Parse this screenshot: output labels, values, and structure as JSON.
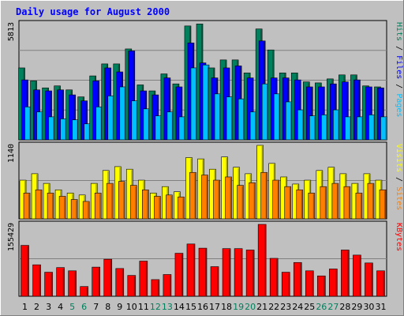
{
  "chart_data": {
    "type": "bar",
    "title": "Daily usage for August 2000",
    "categories": [
      "1",
      "2",
      "3",
      "4",
      "5",
      "6",
      "7",
      "8",
      "9",
      "10",
      "11",
      "12",
      "13",
      "14",
      "15",
      "16",
      "17",
      "18",
      "19",
      "20",
      "21",
      "22",
      "23",
      "24",
      "25",
      "26",
      "27",
      "28",
      "29",
      "30",
      "31"
    ],
    "weekend_days": [
      "5",
      "6",
      "12",
      "13",
      "19",
      "20",
      "26",
      "27"
    ],
    "colors": {
      "background": "#c0c0c0",
      "title": "#0000ff",
      "hits": "#00805c",
      "files": "#0000ff",
      "pages": "#00c0ff",
      "visits": "#ffff00",
      "sites": "#ff8000",
      "kbytes": "#ff0000",
      "weekend_label": "#00805c",
      "weekday_label": "#000000"
    },
    "panels": [
      {
        "id": "hits-files-pages",
        "max_label": "5813",
        "ylim": [
          0,
          5813
        ],
        "legend": [
          {
            "text": "Hits",
            "color": "#00805c"
          },
          {
            "text": " / ",
            "color": "#000000"
          },
          {
            "text": "Files",
            "color": "#0000ff"
          },
          {
            "text": " / ",
            "color": "#000000"
          },
          {
            "text": "Pages",
            "color": "#00c0ff"
          }
        ],
        "series": [
          {
            "name": "Hits",
            "values": [
              3600,
              2950,
              2600,
              2700,
              2500,
              2150,
              3200,
              3800,
              3800,
              4550,
              2750,
              2450,
              3300,
              2800,
              5700,
              5800,
              3600,
              4000,
              4000,
              3350,
              5550,
              4500,
              3350,
              3350,
              2900,
              2850,
              3050,
              3250,
              3250,
              2700,
              2650
            ]
          },
          {
            "name": "Files",
            "values": [
              3000,
              2500,
              2450,
              2500,
              2250,
              1950,
              2950,
              3600,
              3400,
              4450,
              2450,
              2250,
              3100,
              2650,
              4850,
              3850,
              3100,
              3600,
              3700,
              3100,
              4950,
              3100,
              3100,
              3000,
              2650,
              2650,
              2800,
              2900,
              3000,
              2650,
              2600
            ]
          },
          {
            "name": "Pages",
            "values": [
              1650,
              1400,
              1150,
              1050,
              1000,
              800,
              1650,
              2200,
              2650,
              1950,
              1550,
              1200,
              1400,
              1150,
              3600,
              3750,
              2300,
              2150,
              2050,
              1400,
              2800,
              2300,
              1900,
              1500,
              1200,
              1250,
              1500,
              1150,
              1150,
              1250,
              1150
            ]
          }
        ]
      },
      {
        "id": "visits-sites",
        "max_label": "1140",
        "ylim": [
          0,
          1140
        ],
        "legend": [
          {
            "text": "Visits",
            "color": "#ffff00"
          },
          {
            "text": " / ",
            "color": "#000000"
          },
          {
            "text": "Sites",
            "color": "#ff8000"
          }
        ],
        "series": [
          {
            "name": "Visits",
            "values": [
              600,
              700,
              550,
              450,
              400,
              370,
              550,
              750,
              810,
              770,
              600,
              400,
              500,
              420,
              950,
              930,
              770,
              960,
              800,
              700,
              1140,
              860,
              650,
              540,
              600,
              750,
              800,
              700,
              550,
              700,
              600
            ]
          },
          {
            "name": "Sites",
            "values": [
              400,
              450,
              400,
              350,
              300,
              270,
              400,
              550,
              580,
              520,
              450,
              350,
              370,
              340,
              720,
              680,
              600,
              650,
              520,
              560,
              720,
              600,
              500,
              450,
              400,
              500,
              550,
              500,
              400,
              550,
              450
            ]
          }
        ]
      },
      {
        "id": "kbytes",
        "max_label": "155429",
        "ylim": [
          0,
          155429
        ],
        "legend": [
          {
            "text": "KBytes",
            "color": "#ff0000"
          }
        ],
        "series": [
          {
            "name": "KBytes",
            "values": [
              110000,
              68000,
              52000,
              62000,
              55000,
              21000,
              63000,
              80000,
              60000,
              45000,
              76000,
              36000,
              47000,
              93000,
              113000,
              104000,
              64000,
              103000,
              103000,
              100000,
              155429,
              82000,
              52000,
              73000,
              55000,
              44000,
              59000,
              100000,
              89000,
              72000,
              55000
            ]
          }
        ]
      }
    ]
  }
}
